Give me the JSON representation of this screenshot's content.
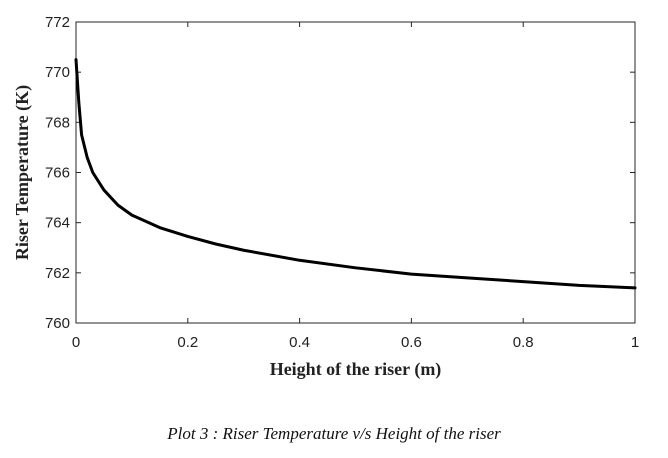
{
  "chart_data": {
    "type": "line",
    "title": "",
    "xlabel": "Height of the riser (m)",
    "ylabel": "Riser Temperature (K)",
    "xlim": [
      0,
      1
    ],
    "ylim": [
      760,
      772
    ],
    "xticks": [
      0,
      0.2,
      0.4,
      0.6,
      0.8,
      1
    ],
    "xtick_labels": [
      "0",
      "0.2",
      "0.4",
      "0.6",
      "0.8",
      "1"
    ],
    "yticks": [
      760,
      762,
      764,
      766,
      768,
      770,
      772
    ],
    "ytick_labels": [
      "760",
      "762",
      "764",
      "766",
      "768",
      "770",
      "772"
    ],
    "grid": false,
    "series": [
      {
        "x": [
          0,
          0.005,
          0.01,
          0.02,
          0.03,
          0.05,
          0.075,
          0.1,
          0.15,
          0.2,
          0.25,
          0.3,
          0.4,
          0.5,
          0.6,
          0.7,
          0.8,
          0.9,
          1.0
        ],
        "y": [
          770.5,
          768.8,
          767.5,
          766.6,
          766.0,
          765.3,
          764.7,
          764.3,
          763.8,
          763.45,
          763.15,
          762.9,
          762.5,
          762.2,
          761.95,
          761.8,
          761.65,
          761.5,
          761.4
        ],
        "color": "#000000"
      }
    ]
  },
  "caption": "Plot 3 : Riser Temperature v/s Height of the riser"
}
